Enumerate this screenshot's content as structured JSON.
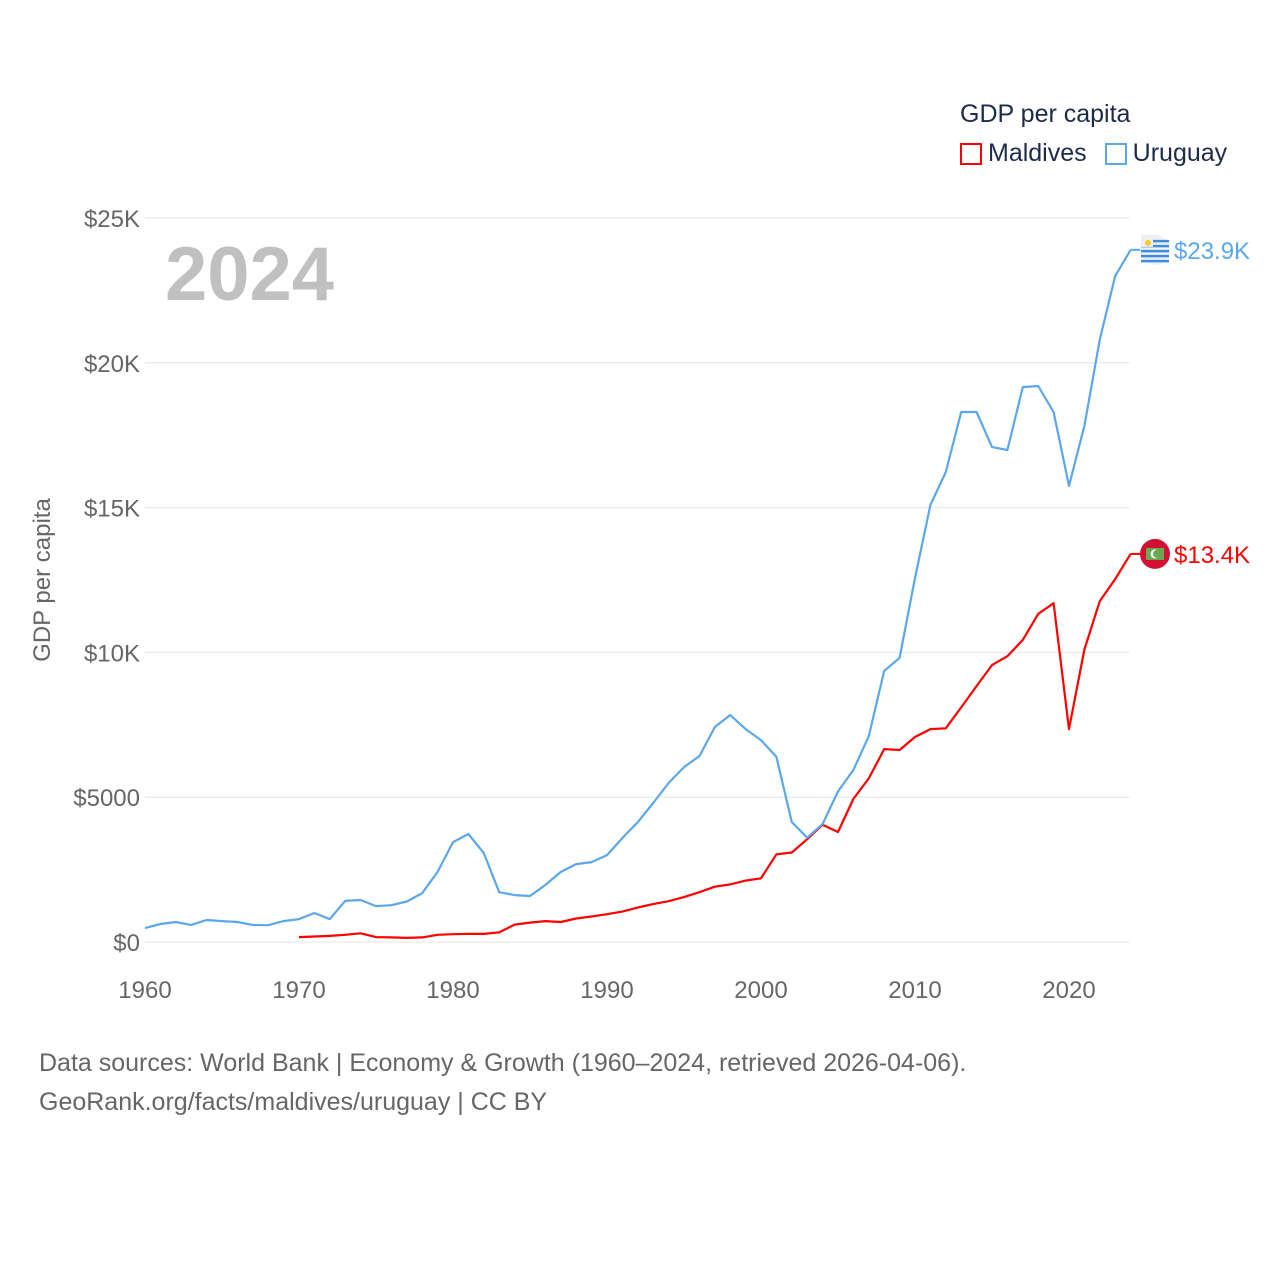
{
  "chart_data": {
    "type": "line",
    "title": "GDP per capita",
    "ylabel": "GDP per capita",
    "xlabel": "",
    "year_label": "2024",
    "xlim": [
      1960,
      2024
    ],
    "ylim": [
      0,
      25000
    ],
    "x_ticks": [
      1960,
      1970,
      1980,
      1990,
      2000,
      2010,
      2020
    ],
    "x_tick_labels": [
      "1960",
      "1970",
      "1980",
      "1990",
      "2000",
      "2010",
      "2020"
    ],
    "y_ticks": [
      0,
      5000,
      10000,
      15000,
      20000,
      25000
    ],
    "y_tick_labels": [
      "$0",
      "$5000",
      "$10K",
      "$15K",
      "$20K",
      "$25K"
    ],
    "grid": true,
    "legend_position": "top-right",
    "series": [
      {
        "name": "Maldives",
        "color": "#ff0000",
        "end_label": "$13.4K",
        "flag": "maldives-flag",
        "start_year": 1970,
        "values": [
          170,
          190,
          210,
          250,
          300,
          170,
          160,
          140,
          160,
          250,
          270,
          280,
          280,
          330,
          600,
          670,
          720,
          690,
          810,
          880,
          960,
          1050,
          1190,
          1310,
          1410,
          1550,
          1720,
          1910,
          1990,
          2120,
          2200,
          3030,
          3090,
          3550,
          4050,
          3800,
          4940,
          5650,
          6660,
          6630,
          7080,
          7350,
          7380,
          8100,
          8840,
          9560,
          9870,
          10430,
          11330,
          11700,
          7350,
          10100,
          11770,
          12530,
          13400
        ]
      },
      {
        "name": "Uruguay",
        "color": "#5ba7ec",
        "end_label": "$23.9K",
        "flag": "uruguay-flag",
        "start_year": 1960,
        "values": [
          480,
          620,
          690,
          590,
          760,
          720,
          690,
          590,
          580,
          720,
          790,
          1000,
          790,
          1420,
          1450,
          1240,
          1270,
          1400,
          1690,
          2420,
          3450,
          3730,
          3070,
          1720,
          1620,
          1590,
          1970,
          2420,
          2690,
          2760,
          3000,
          3590,
          4140,
          4800,
          5490,
          6040,
          6420,
          7420,
          7840,
          7350,
          6970,
          6390,
          4140,
          3600,
          4070,
          5200,
          5940,
          7110,
          9360,
          9810,
          12570,
          15090,
          16230,
          18300,
          18300,
          17090,
          16990,
          19160,
          19200,
          18300,
          15750,
          17820,
          20800,
          23000,
          23900
        ]
      }
    ]
  },
  "footer": {
    "line1": "Data sources: World Bank | Economy & Growth (1960–2024, retrieved 2026-04-06).",
    "line2": "GeoRank.org/facts/maldives/uruguay | CC BY"
  }
}
